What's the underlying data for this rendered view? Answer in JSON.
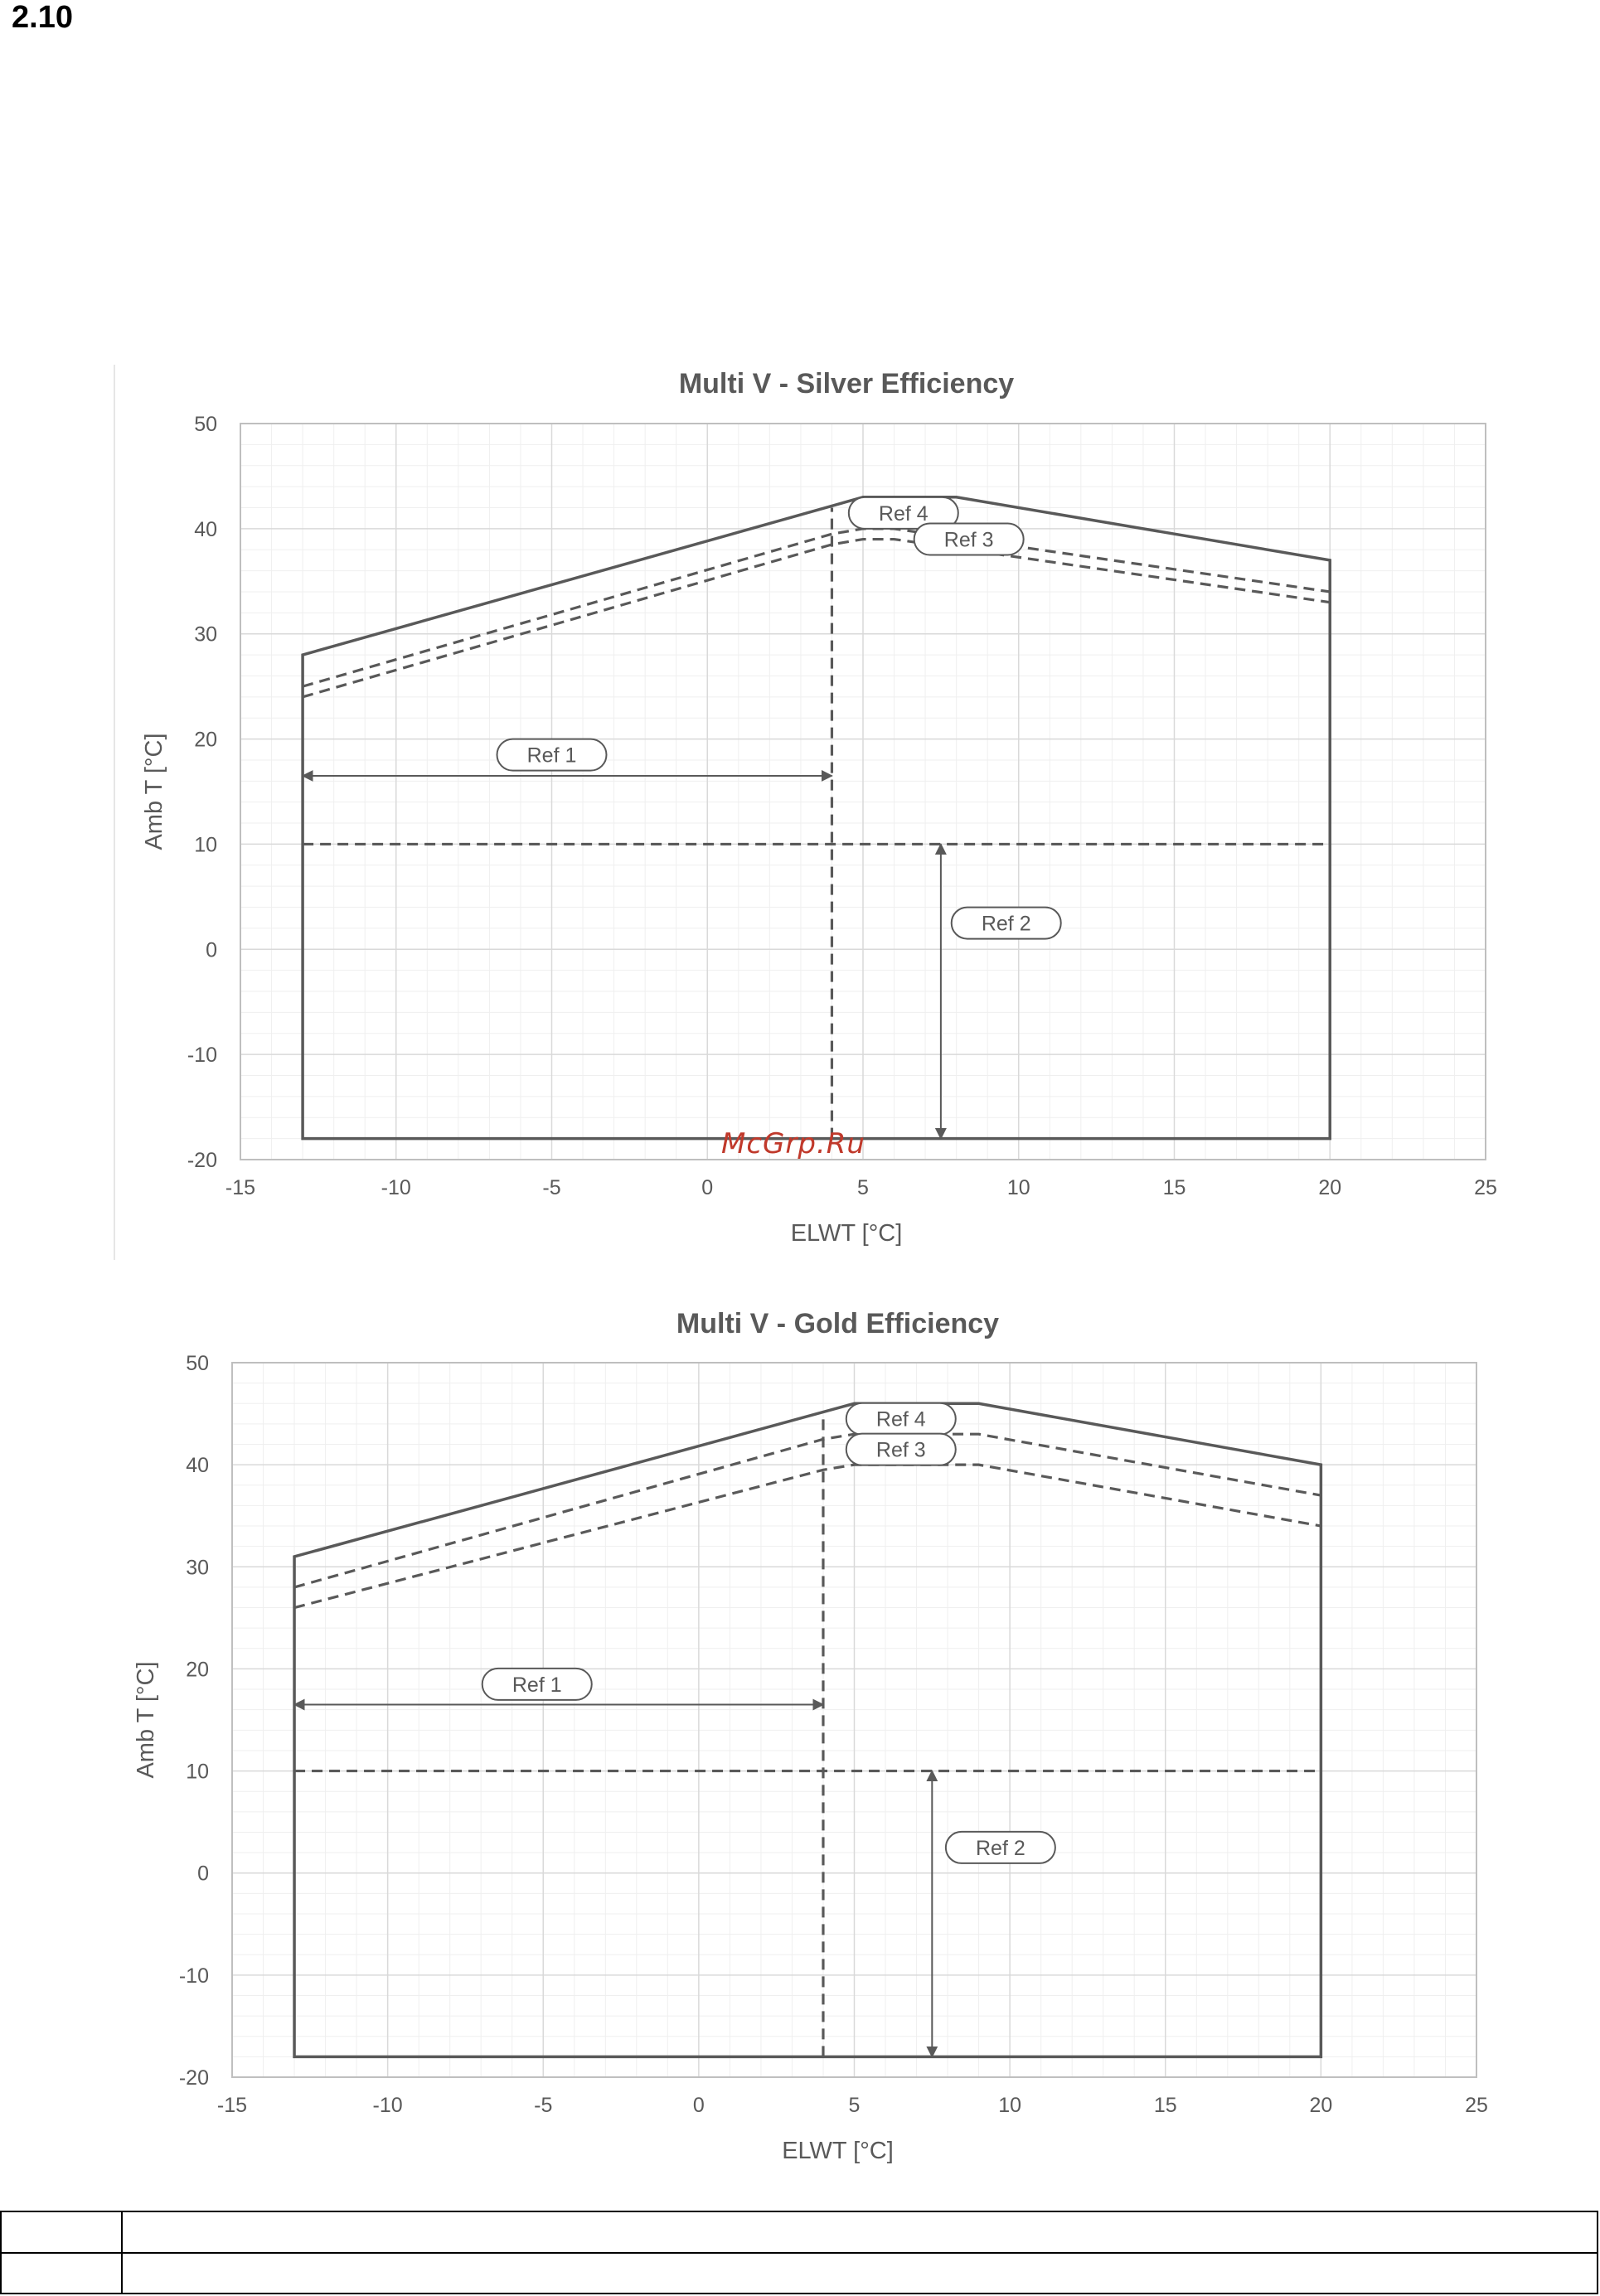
{
  "page": {
    "section_number": "2.10",
    "watermark": "McGrp.Ru"
  },
  "chart_data": [
    {
      "type": "line",
      "title": "Multi V - Silver Efficiency",
      "xlabel": "ELWT [°C]",
      "ylabel": "Amb T [°C]",
      "xlim": [
        -15,
        25
      ],
      "ylim": [
        -20,
        50
      ],
      "xticks": [
        -15,
        -10,
        -5,
        0,
        5,
        10,
        15,
        20,
        25
      ],
      "yticks": [
        -20,
        -10,
        0,
        10,
        20,
        30,
        40,
        50
      ],
      "grid": true,
      "minor_grid": true,
      "colors": {
        "line": "#595959",
        "grid": "#d9d9d9",
        "minor_grid": "#efefef",
        "text": "#595959"
      },
      "series": [
        {
          "style": "solid",
          "closed": true,
          "x": [
            -13,
            -13,
            5,
            8,
            20,
            20
          ],
          "y": [
            -18,
            28,
            43,
            43,
            37,
            -18
          ]
        },
        {
          "style": "dashed",
          "x": [
            -13,
            4,
            5,
            6,
            20
          ],
          "y": [
            25,
            39.5,
            40,
            40,
            34
          ]
        },
        {
          "style": "dashed",
          "x": [
            -13,
            4,
            5,
            6,
            20
          ],
          "y": [
            24,
            38.5,
            39,
            39,
            33
          ]
        },
        {
          "style": "dashed",
          "x": [
            -13,
            20
          ],
          "y": [
            10,
            10
          ]
        },
        {
          "style": "dashed",
          "x": [
            4,
            4
          ],
          "y": [
            -18,
            42
          ]
        }
      ],
      "arrows": [
        {
          "x1": -13,
          "y1": 16.5,
          "x2": 4,
          "y2": 16.5
        },
        {
          "x1": 7.5,
          "y1": 10,
          "x2": 7.5,
          "y2": -18
        }
      ],
      "annotations": [
        {
          "text": "Ref 4",
          "x": 6.3,
          "y": 41.5
        },
        {
          "text": "Ref 3",
          "x": 8.4,
          "y": 39
        },
        {
          "text": "Ref 1",
          "x": -5,
          "y": 18.5
        },
        {
          "text": "Ref 2",
          "x": 9.6,
          "y": 2.5
        }
      ]
    },
    {
      "type": "line",
      "title": "Multi V - Gold Efficiency",
      "xlabel": "ELWT [°C]",
      "ylabel": "Amb T [°C]",
      "xlim": [
        -15,
        25
      ],
      "ylim": [
        -20,
        50
      ],
      "xticks": [
        -15,
        -10,
        -5,
        0,
        5,
        10,
        15,
        20,
        25
      ],
      "yticks": [
        -20,
        -10,
        0,
        10,
        20,
        30,
        40,
        50
      ],
      "grid": true,
      "minor_grid": true,
      "colors": {
        "line": "#595959",
        "grid": "#d9d9d9",
        "minor_grid": "#efefef",
        "text": "#595959"
      },
      "series": [
        {
          "style": "solid",
          "closed": true,
          "x": [
            -13,
            -13,
            5,
            9,
            20,
            20
          ],
          "y": [
            -18,
            31,
            46,
            46,
            40,
            -18
          ]
        },
        {
          "style": "dashed",
          "x": [
            -13,
            4,
            5,
            9,
            20
          ],
          "y": [
            28,
            42.5,
            43,
            43,
            37
          ]
        },
        {
          "style": "dashed",
          "x": [
            -13,
            4,
            5,
            9,
            20
          ],
          "y": [
            26,
            39.5,
            40,
            40,
            34
          ]
        },
        {
          "style": "dashed",
          "x": [
            -13,
            20
          ],
          "y": [
            10,
            10
          ]
        },
        {
          "style": "dashed",
          "x": [
            4,
            4
          ],
          "y": [
            -18,
            45
          ]
        }
      ],
      "arrows": [
        {
          "x1": -13,
          "y1": 16.5,
          "x2": 4,
          "y2": 16.5
        },
        {
          "x1": 7.5,
          "y1": 10,
          "x2": 7.5,
          "y2": -18
        }
      ],
      "annotations": [
        {
          "text": "Ref 4",
          "x": 6.5,
          "y": 44.5
        },
        {
          "text": "Ref 3",
          "x": 6.5,
          "y": 41.5
        },
        {
          "text": "Ref 1",
          "x": -5.2,
          "y": 18.5
        },
        {
          "text": "Ref 2",
          "x": 9.7,
          "y": 2.5
        }
      ]
    }
  ]
}
